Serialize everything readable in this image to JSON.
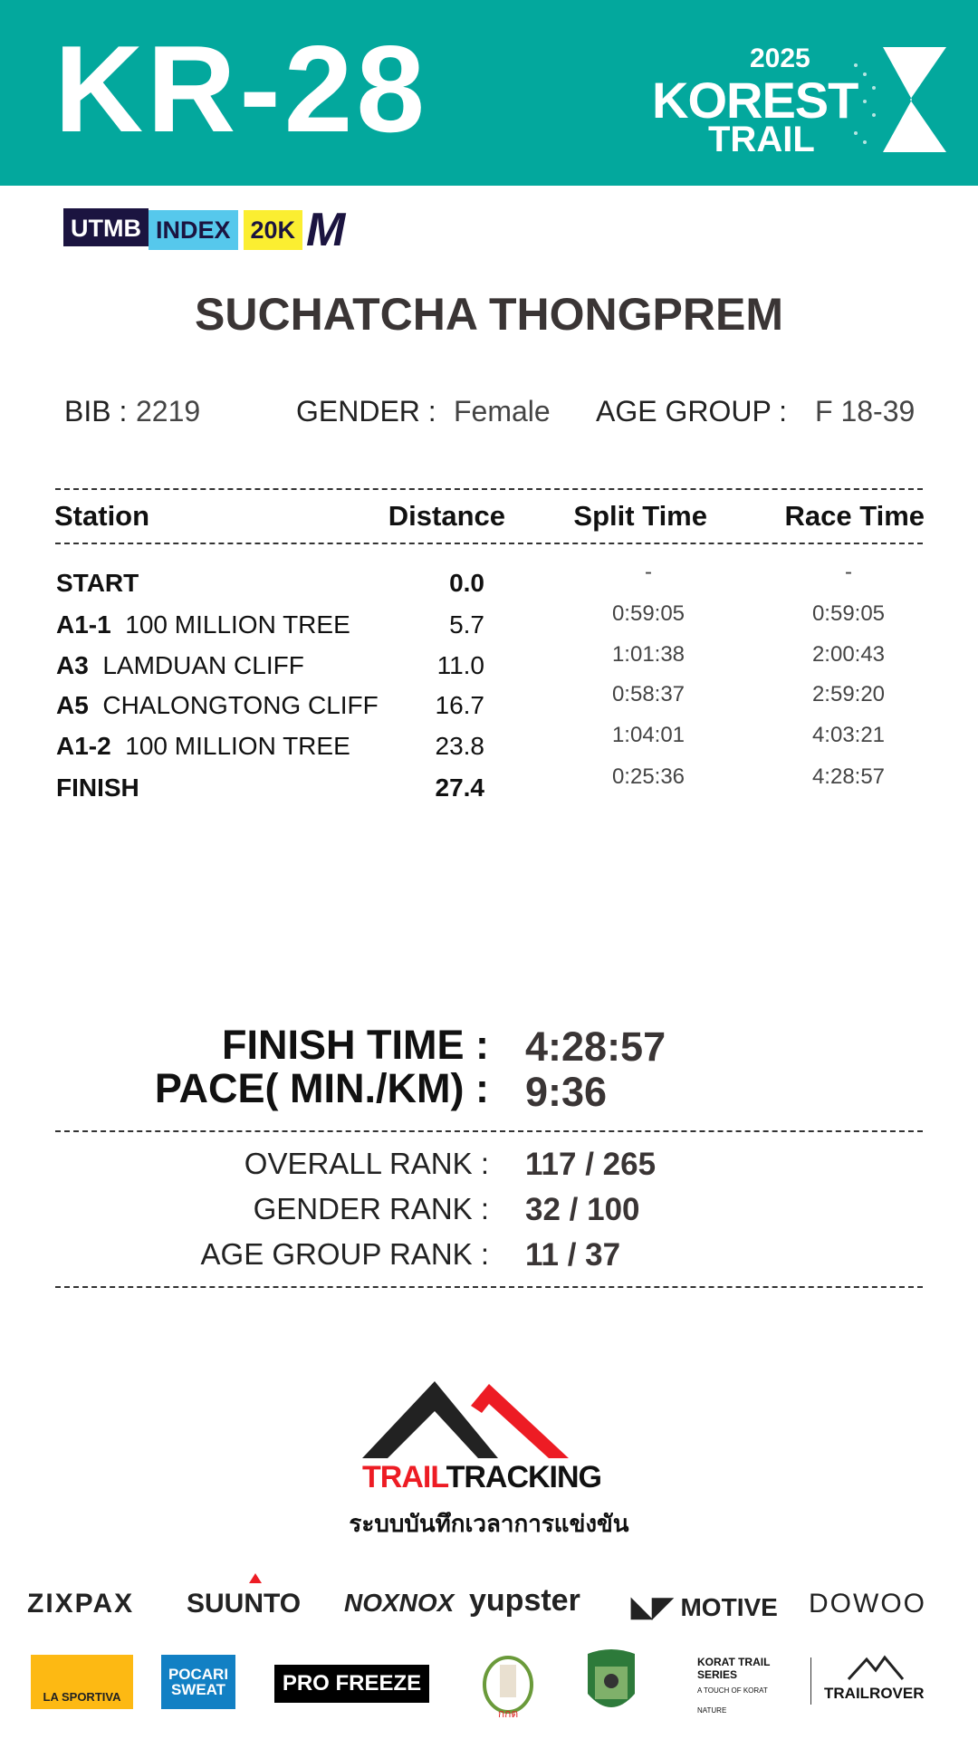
{
  "header": {
    "race_code": "KR-28",
    "event_logo": {
      "year": "2025",
      "name": "KOREST",
      "sub": "TRAIL"
    },
    "bg_color": "#03A89D"
  },
  "badge": {
    "utmb": "UTMB",
    "index": "INDEX",
    "category": "20K",
    "size": "M"
  },
  "runner": {
    "name": "SUCHATCHA THONGPREM",
    "bib_label": "BIB :",
    "bib": "2219",
    "gender_label": "GENDER  :",
    "gender": "Female",
    "age_group_label": "AGE GROUP  :",
    "age_group": "F 18-39"
  },
  "table": {
    "headers": [
      "Station",
      "Distance",
      "Split Time",
      "Race Time"
    ],
    "rows": [
      {
        "code": "START",
        "name": "",
        "distance": "0.0",
        "split": "-",
        "race": "-"
      },
      {
        "code": "A1-1",
        "name": "100  MILLION TREE",
        "distance": "5.7",
        "split": "0:59:05",
        "race": "0:59:05"
      },
      {
        "code": "A3",
        "name": "LAMDUAN CLIFF",
        "distance": "11.0",
        "split": "1:01:38",
        "race": "2:00:43"
      },
      {
        "code": "A5",
        "name": "CHALONGTONG CLIFF",
        "distance": "16.7",
        "split": "0:58:37",
        "race": "2:59:20"
      },
      {
        "code": "A1-2",
        "name": "100  MILLION TREE",
        "distance": "23.8",
        "split": "1:04:01",
        "race": "4:03:21"
      },
      {
        "code": "FINISH",
        "name": "",
        "distance": "27.4",
        "split": "0:25:36",
        "race": "4:28:57"
      }
    ]
  },
  "summary": {
    "finish_label": "FINISH TIME :",
    "finish": "4:28:57",
    "pace_label": "PACE( MIN./KM) :",
    "pace": "9:36"
  },
  "ranks": [
    {
      "label": "OVERALL RANK  :",
      "value": "117 / 265"
    },
    {
      "label": "GENDER RANK  :",
      "value": "32 / 100"
    },
    {
      "label": "AGE GROUP RANK :",
      "value": "11 / 37"
    }
  ],
  "timing": {
    "brand_red": "TRAIL",
    "brand_black": "TRACKING",
    "tagline": "ระบบบันทึกเวลาการแข่งขัน",
    "red": "#ED1C24"
  },
  "sponsors_row1": [
    "ZIXPAX",
    "SUUNTO",
    "NOXNOX",
    "yupster",
    "MOTIVE",
    "DOWOO"
  ],
  "sponsors_row2": [
    "LA SPORTIVA",
    "POCARI SWEAT",
    "PRO FREEZE",
    "KORAT TRAIL SERIES",
    "A TOUCH OF KORAT NATURE",
    "TRAILROVER"
  ]
}
